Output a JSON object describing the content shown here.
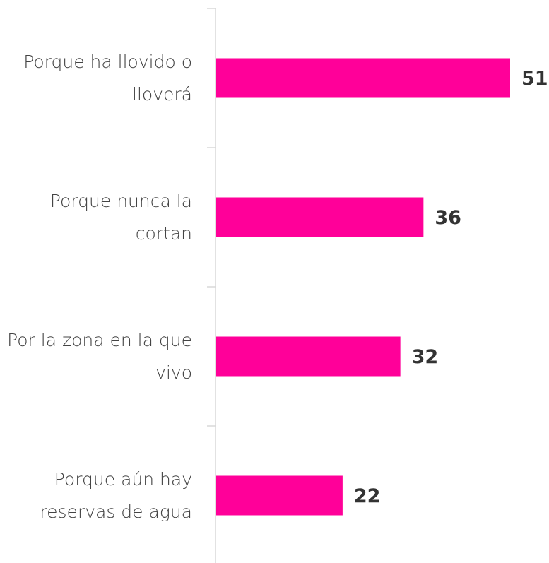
{
  "chart_data": {
    "type": "bar",
    "orientation": "horizontal",
    "categories": [
      "Porque ha llovido o lloverá",
      "Porque nunca la cortan",
      "Por la zona en la que vivo",
      "Porque aún hay reservas de agua"
    ],
    "values": [
      51,
      36,
      32,
      22
    ],
    "color": "#ff0099"
  }
}
